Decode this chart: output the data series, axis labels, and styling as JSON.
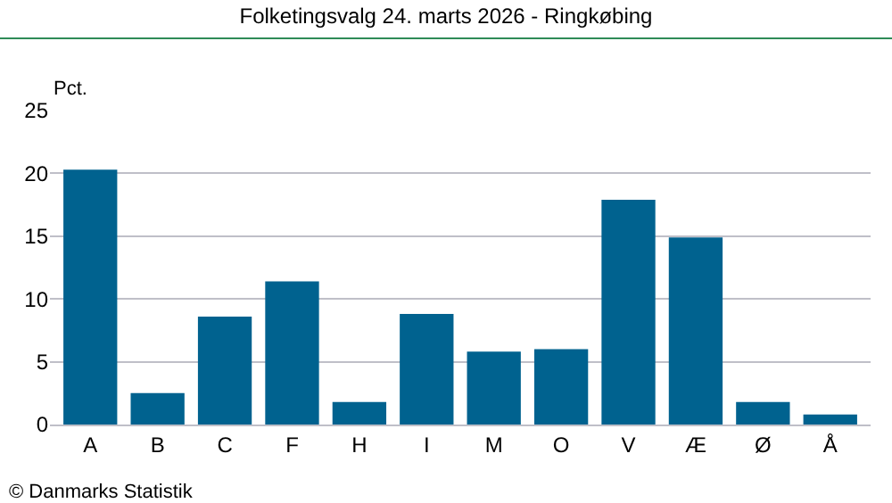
{
  "chart_data": {
    "type": "bar",
    "title": "Folketingsvalg 24. marts 2026 - Ringkøbing",
    "ylabel": "Pct.",
    "categories": [
      "A",
      "B",
      "C",
      "F",
      "H",
      "I",
      "M",
      "O",
      "V",
      "Æ",
      "Ø",
      "Å"
    ],
    "values": [
      20.3,
      2.5,
      8.6,
      11.4,
      1.8,
      8.8,
      5.8,
      6.0,
      17.9,
      14.9,
      1.8,
      0.8
    ],
    "color": "#00628f",
    "ylim": [
      0,
      25
    ],
    "yticks": [
      0,
      5,
      10,
      15,
      20,
      25
    ],
    "grid": "y",
    "annotations": [
      "© Danmarks Statistik"
    ]
  }
}
